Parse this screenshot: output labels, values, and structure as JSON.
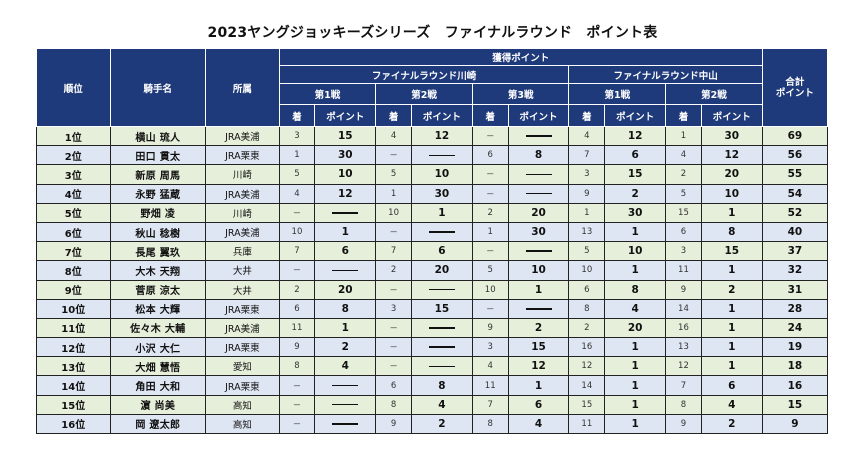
{
  "title": "2023ヤングジョッキーズシリーズ　ファイナルラウンド　ポイント表",
  "headers": {
    "rank": "順位",
    "jockey": "騎手名",
    "affiliation": "所属",
    "points_earned": "獲得ポイント",
    "kawasaki": "ファイナルラウンド川崎",
    "nakayama": "ファイナルラウンド中山",
    "race1": "第1戦",
    "race2": "第2戦",
    "race3": "第3戦",
    "finish": "着",
    "points": "ポイント",
    "total_line1": "合計",
    "total_line2": "ポイント"
  },
  "rows": [
    {
      "rank": "1位",
      "name": "横山 琉人",
      "aff": "JRA美浦",
      "k1f": "3",
      "k1p": "15",
      "k2f": "4",
      "k2p": "12",
      "k3f": "－",
      "k3p": "",
      "n1f": "4",
      "n1p": "12",
      "n2f": "1",
      "n2p": "30",
      "total": "69"
    },
    {
      "rank": "2位",
      "name": "田口 貫太",
      "aff": "JRA栗東",
      "k1f": "1",
      "k1p": "30",
      "k2f": "－",
      "k2p": "",
      "k3f": "6",
      "k3p": "8",
      "n1f": "7",
      "n1p": "6",
      "n2f": "4",
      "n2p": "12",
      "total": "56"
    },
    {
      "rank": "3位",
      "name": "新原 周馬",
      "aff": "川崎",
      "k1f": "5",
      "k1p": "10",
      "k2f": "5",
      "k2p": "10",
      "k3f": "－",
      "k3p": "",
      "n1f": "3",
      "n1p": "15",
      "n2f": "2",
      "n2p": "20",
      "total": "55"
    },
    {
      "rank": "4位",
      "name": "永野 猛蔵",
      "aff": "JRA美浦",
      "k1f": "4",
      "k1p": "12",
      "k2f": "1",
      "k2p": "30",
      "k3f": "－",
      "k3p": "",
      "n1f": "9",
      "n1p": "2",
      "n2f": "5",
      "n2p": "10",
      "total": "54"
    },
    {
      "rank": "5位",
      "name": "野畑 凌",
      "aff": "川崎",
      "k1f": "－",
      "k1p": "",
      "k2f": "10",
      "k2p": "1",
      "k3f": "2",
      "k3p": "20",
      "n1f": "1",
      "n1p": "30",
      "n2f": "15",
      "n2p": "1",
      "total": "52"
    },
    {
      "rank": "6位",
      "name": "秋山 稔樹",
      "aff": "JRA美浦",
      "k1f": "10",
      "k1p": "1",
      "k2f": "－",
      "k2p": "",
      "k3f": "1",
      "k3p": "30",
      "n1f": "13",
      "n1p": "1",
      "n2f": "6",
      "n2p": "8",
      "total": "40"
    },
    {
      "rank": "7位",
      "name": "長尾 翼玖",
      "aff": "兵庫",
      "k1f": "7",
      "k1p": "6",
      "k2f": "7",
      "k2p": "6",
      "k3f": "－",
      "k3p": "",
      "n1f": "5",
      "n1p": "10",
      "n2f": "3",
      "n2p": "15",
      "total": "37"
    },
    {
      "rank": "8位",
      "name": "大木 天翔",
      "aff": "大井",
      "k1f": "－",
      "k1p": "",
      "k2f": "2",
      "k2p": "20",
      "k3f": "5",
      "k3p": "10",
      "n1f": "10",
      "n1p": "1",
      "n2f": "11",
      "n2p": "1",
      "total": "32"
    },
    {
      "rank": "9位",
      "name": "菅原 涼太",
      "aff": "大井",
      "k1f": "2",
      "k1p": "20",
      "k2f": "－",
      "k2p": "",
      "k3f": "10",
      "k3p": "1",
      "n1f": "6",
      "n1p": "8",
      "n2f": "9",
      "n2p": "2",
      "total": "31"
    },
    {
      "rank": "10位",
      "name": "松本 大輝",
      "aff": "JRA栗東",
      "k1f": "6",
      "k1p": "8",
      "k2f": "3",
      "k2p": "15",
      "k3f": "－",
      "k3p": "",
      "n1f": "8",
      "n1p": "4",
      "n2f": "14",
      "n2p": "1",
      "total": "28"
    },
    {
      "rank": "11位",
      "name": "佐々木 大輔",
      "aff": "JRA美浦",
      "k1f": "11",
      "k1p": "1",
      "k2f": "－",
      "k2p": "",
      "k3f": "9",
      "k3p": "2",
      "n1f": "2",
      "n1p": "20",
      "n2f": "16",
      "n2p": "1",
      "total": "24"
    },
    {
      "rank": "12位",
      "name": "小沢 大仁",
      "aff": "JRA栗東",
      "k1f": "9",
      "k1p": "2",
      "k2f": "－",
      "k2p": "",
      "k3f": "3",
      "k3p": "15",
      "n1f": "16",
      "n1p": "1",
      "n2f": "13",
      "n2p": "1",
      "total": "19"
    },
    {
      "rank": "13位",
      "name": "大畑 慧悟",
      "aff": "愛知",
      "k1f": "8",
      "k1p": "4",
      "k2f": "－",
      "k2p": "",
      "k3f": "4",
      "k3p": "12",
      "n1f": "12",
      "n1p": "1",
      "n2f": "12",
      "n2p": "1",
      "total": "18"
    },
    {
      "rank": "14位",
      "name": "角田 大和",
      "aff": "JRA栗東",
      "k1f": "－",
      "k1p": "",
      "k2f": "6",
      "k2p": "8",
      "k3f": "11",
      "k3p": "1",
      "n1f": "14",
      "n1p": "1",
      "n2f": "7",
      "n2p": "6",
      "total": "16"
    },
    {
      "rank": "15位",
      "name": "濵 尚美",
      "aff": "高知",
      "k1f": "－",
      "k1p": "",
      "k2f": "8",
      "k2p": "4",
      "k3f": "7",
      "k3p": "6",
      "n1f": "15",
      "n1p": "1",
      "n2f": "8",
      "n2p": "4",
      "total": "15"
    },
    {
      "rank": "16位",
      "name": "岡 遼太郎",
      "aff": "高知",
      "k1f": "－",
      "k1p": "",
      "k2f": "9",
      "k2p": "2",
      "k3f": "8",
      "k3p": "4",
      "n1f": "11",
      "n1p": "1",
      "n2f": "9",
      "n2p": "2",
      "total": "9"
    }
  ]
}
